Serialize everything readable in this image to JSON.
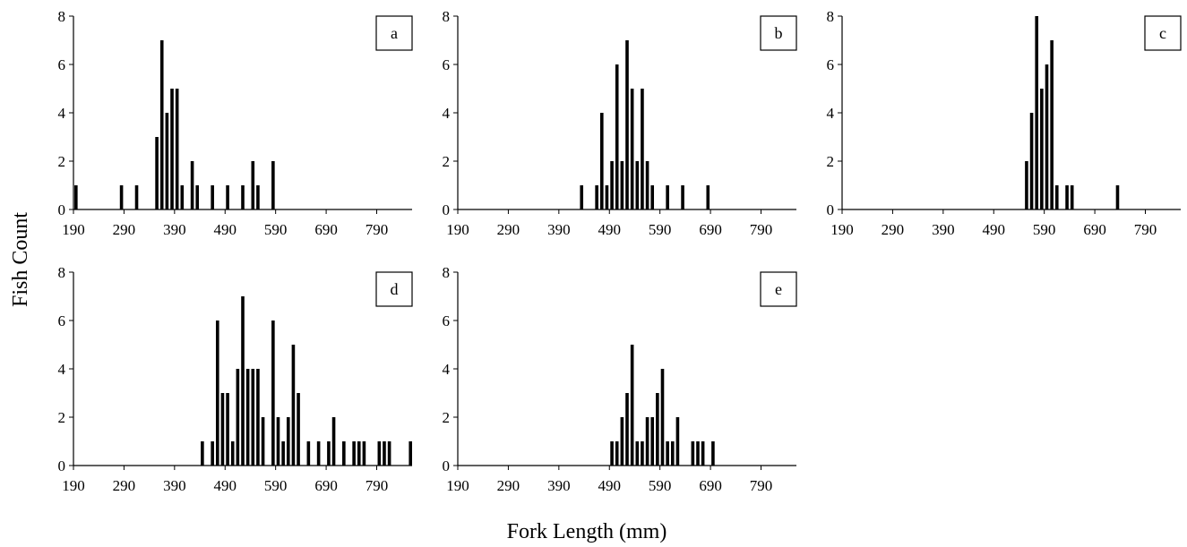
{
  "figure": {
    "xlabel": "Fork Length (mm)",
    "ylabel": "Fish Count"
  },
  "chart_data": [
    {
      "type": "bar",
      "label": "a",
      "xlim": [
        190,
        860
      ],
      "ylim": [
        0,
        8
      ],
      "xticks": [
        190,
        290,
        390,
        490,
        590,
        690,
        790
      ],
      "yticks": [
        0,
        2,
        4,
        6,
        8
      ],
      "xlabel": "",
      "ylabel": "",
      "x": [
        195,
        285,
        315,
        355,
        365,
        375,
        385,
        395,
        405,
        425,
        435,
        465,
        495,
        525,
        545,
        555,
        585
      ],
      "values": [
        1,
        1,
        1,
        3,
        7,
        4,
        5,
        5,
        1,
        2,
        1,
        1,
        1,
        1,
        2,
        1,
        2
      ]
    },
    {
      "type": "bar",
      "label": "b",
      "xlim": [
        190,
        860
      ],
      "ylim": [
        0,
        8
      ],
      "xticks": [
        190,
        290,
        390,
        490,
        590,
        690,
        790
      ],
      "yticks": [
        0,
        2,
        4,
        6,
        8
      ],
      "xlabel": "",
      "ylabel": "",
      "x": [
        435,
        465,
        475,
        485,
        495,
        505,
        515,
        525,
        535,
        545,
        555,
        565,
        575,
        605,
        635,
        685
      ],
      "values": [
        1,
        1,
        4,
        1,
        2,
        6,
        2,
        7,
        5,
        2,
        5,
        2,
        1,
        1,
        1,
        1
      ]
    },
    {
      "type": "bar",
      "label": "c",
      "xlim": [
        190,
        860
      ],
      "ylim": [
        0,
        8
      ],
      "xticks": [
        190,
        290,
        390,
        490,
        590,
        690,
        790
      ],
      "yticks": [
        0,
        2,
        4,
        6,
        8
      ],
      "xlabel": "",
      "ylabel": "",
      "x": [
        555,
        565,
        575,
        585,
        595,
        605,
        615,
        635,
        645,
        735
      ],
      "values": [
        2,
        4,
        8,
        5,
        6,
        7,
        1,
        1,
        1,
        1
      ]
    },
    {
      "type": "bar",
      "label": "d",
      "xlim": [
        190,
        860
      ],
      "ylim": [
        0,
        8
      ],
      "xticks": [
        190,
        290,
        390,
        490,
        590,
        690,
        790
      ],
      "yticks": [
        0,
        2,
        4,
        6,
        8
      ],
      "xlabel": "",
      "ylabel": "",
      "x": [
        445,
        465,
        475,
        485,
        495,
        505,
        515,
        525,
        535,
        545,
        555,
        565,
        585,
        595,
        605,
        615,
        625,
        635,
        655,
        675,
        695,
        705,
        725,
        745,
        755,
        765,
        795,
        805,
        815,
        860
      ],
      "values": [
        1,
        1,
        6,
        3,
        3,
        1,
        4,
        7,
        4,
        4,
        4,
        2,
        6,
        2,
        1,
        2,
        5,
        3,
        1,
        1,
        1,
        2,
        1,
        1,
        1,
        1,
        1,
        1,
        1,
        1
      ]
    },
    {
      "type": "bar",
      "label": "e",
      "xlim": [
        190,
        860
      ],
      "ylim": [
        0,
        8
      ],
      "xticks": [
        190,
        290,
        390,
        490,
        590,
        690,
        790
      ],
      "yticks": [
        0,
        2,
        4,
        6,
        8
      ],
      "xlabel": "",
      "ylabel": "",
      "x": [
        495,
        505,
        515,
        525,
        535,
        545,
        555,
        565,
        575,
        585,
        595,
        605,
        615,
        625,
        655,
        665,
        675,
        695
      ],
      "values": [
        1,
        1,
        2,
        3,
        5,
        1,
        1,
        2,
        2,
        3,
        4,
        1,
        1,
        2,
        1,
        1,
        1,
        1
      ]
    }
  ]
}
